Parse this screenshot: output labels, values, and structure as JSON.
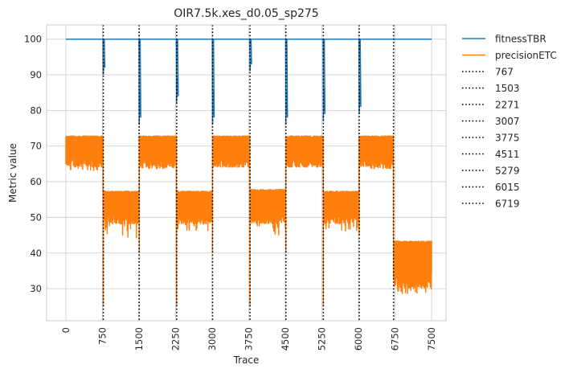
{
  "chart_data": {
    "type": "line",
    "title": "OIR7.5k.xes_d0.05_sp275",
    "xlabel": "Trace",
    "ylabel": "Metric value",
    "xlim": [
      -395,
      7795
    ],
    "ylim": [
      21,
      104
    ],
    "xticks": [
      0,
      750,
      1500,
      2250,
      3000,
      3750,
      4500,
      5250,
      6000,
      6750,
      7500
    ],
    "yticks": [
      30,
      40,
      50,
      60,
      70,
      80,
      90,
      100
    ],
    "grid": true,
    "legend_position": "outside-right",
    "segments": [
      {
        "start": 0,
        "end": 767,
        "band": [
          64,
          73
        ],
        "low": 63
      },
      {
        "start": 767,
        "end": 1503,
        "band": [
          48,
          57.5
        ],
        "low": 44
      },
      {
        "start": 1503,
        "end": 2271,
        "band": [
          64,
          73
        ],
        "low": 63.5
      },
      {
        "start": 2271,
        "end": 3007,
        "band": [
          48,
          57.5
        ],
        "low": 46
      },
      {
        "start": 3007,
        "end": 3775,
        "band": [
          64,
          73
        ],
        "low": 64
      },
      {
        "start": 3775,
        "end": 4511,
        "band": [
          48,
          58
        ],
        "low": 44
      },
      {
        "start": 4511,
        "end": 5279,
        "band": [
          64,
          73
        ],
        "low": 64
      },
      {
        "start": 5279,
        "end": 6015,
        "band": [
          48,
          57.5
        ],
        "low": 46
      },
      {
        "start": 6015,
        "end": 6719,
        "band": [
          64,
          73
        ],
        "low": 63.5
      },
      {
        "start": 6719,
        "end": 7500,
        "band": [
          30,
          43.5
        ],
        "low": 28.5
      }
    ],
    "series": [
      {
        "name": "fitnessTBR",
        "color": "#1f77b4",
        "style": "solid",
        "baseline": 100,
        "dips": [
          {
            "x": 767,
            "min": 90
          },
          {
            "x": 1503,
            "min": 76
          },
          {
            "x": 2271,
            "min": 82
          },
          {
            "x": 3007,
            "min": 76
          },
          {
            "x": 3775,
            "min": 91
          },
          {
            "x": 4511,
            "min": 76
          },
          {
            "x": 5279,
            "min": 77
          },
          {
            "x": 6015,
            "min": 79
          }
        ]
      },
      {
        "name": "precisionETC",
        "color": "#ff7f0e",
        "style": "solid",
        "transition_min": [
          {
            "x": 767,
            "min": 25
          },
          {
            "x": 1503,
            "min": 40
          },
          {
            "x": 2271,
            "min": 25
          },
          {
            "x": 3007,
            "min": 40
          },
          {
            "x": 3775,
            "min": 25
          },
          {
            "x": 4511,
            "min": 40
          },
          {
            "x": 5279,
            "min": 25
          },
          {
            "x": 6015,
            "min": 45
          },
          {
            "x": 6719,
            "min": 33
          }
        ]
      }
    ],
    "vlines": {
      "color": "#000000",
      "style": "dotted",
      "positions": [
        767,
        1503,
        2271,
        3007,
        3775,
        4511,
        5279,
        6015,
        6719
      ],
      "labels": [
        "767",
        "1503",
        "2271",
        "3007",
        "3775",
        "4511",
        "5279",
        "6015",
        "6719"
      ]
    }
  }
}
